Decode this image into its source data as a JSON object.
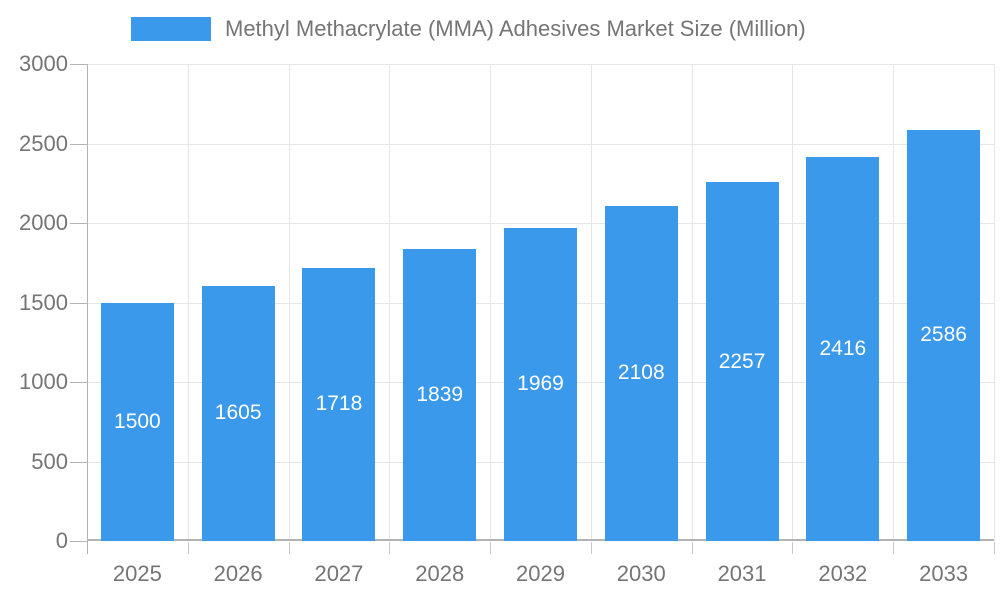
{
  "legend": {
    "label": "Methyl Methacrylate (MMA) Adhesives Market Size (Million)"
  },
  "colors": {
    "bar": "#3b99ec",
    "text": "#757575",
    "bar_label": "#ffffff",
    "gridline": "#e6e6e6",
    "axis": "#b3b3b3",
    "tick": "#c9c9c9",
    "background": "#ffffff"
  },
  "chart_data": {
    "type": "bar",
    "title": "Methyl Methacrylate (MMA) Adhesives Market Size (Million)",
    "categories": [
      "2025",
      "2026",
      "2027",
      "2028",
      "2029",
      "2030",
      "2031",
      "2032",
      "2033"
    ],
    "values": [
      1500,
      1605,
      1718,
      1839,
      1969,
      2108,
      2257,
      2416,
      2586
    ],
    "xlabel": "",
    "ylabel": "",
    "ylim": [
      0,
      3000
    ],
    "yticks": [
      0,
      500,
      1000,
      1500,
      2000,
      2500,
      3000
    ],
    "grid": true,
    "legend_position": "top",
    "bar_value_labels": "inside-center"
  }
}
